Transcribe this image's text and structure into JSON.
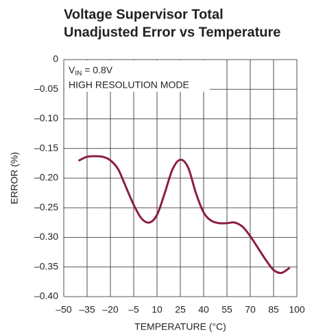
{
  "chart_data": {
    "type": "line",
    "title": [
      "Voltage Supervisor Total",
      "Unadjusted Error vs Temperature"
    ],
    "xlabel": "TEMPERATURE (°C)",
    "ylabel": "ERROR (%)",
    "annotation": {
      "main": "V",
      "subscript": "IN",
      "suffix": " = 0.8V"
    },
    "annotation2": "HIGH RESOLUTION MODE",
    "x": [
      -40,
      -35,
      -30,
      -25,
      -20,
      -15,
      -10,
      -5,
      0,
      5,
      10,
      15,
      20,
      25,
      30,
      35,
      40,
      45,
      50,
      55,
      60,
      65,
      70,
      75,
      80,
      85,
      90,
      95
    ],
    "series": [
      {
        "name": "ERROR",
        "color": "#8c1d40",
        "values": [
          -0.17,
          -0.164,
          -0.163,
          -0.164,
          -0.17,
          -0.185,
          -0.215,
          -0.245,
          -0.268,
          -0.275,
          -0.262,
          -0.225,
          -0.185,
          -0.169,
          -0.182,
          -0.225,
          -0.258,
          -0.272,
          -0.276,
          -0.276,
          -0.275,
          -0.282,
          -0.298,
          -0.318,
          -0.338,
          -0.355,
          -0.36,
          -0.352
        ]
      }
    ],
    "xlim": [
      -50,
      100
    ],
    "xticks": [
      {
        "value": -50,
        "label": "–50"
      },
      {
        "value": -35,
        "label": "–35"
      },
      {
        "value": -20,
        "label": "–20"
      },
      {
        "value": -5,
        "label": "–5"
      },
      10,
      25,
      40,
      55,
      70,
      85,
      100
    ],
    "ylim": [
      -0.4,
      0
    ],
    "yticks": [
      {
        "value": -0.4,
        "label": "–0.40"
      },
      {
        "value": -0.35,
        "label": "–0.35"
      },
      {
        "value": -0.3,
        "label": "–0.30"
      },
      {
        "value": -0.25,
        "label": "–0.25"
      },
      {
        "value": -0.2,
        "label": "–0.20"
      },
      {
        "value": -0.15,
        "label": "–0.15"
      },
      {
        "value": -0.1,
        "label": "–0.10"
      },
      {
        "value": -0.05,
        "label": "–0.05"
      },
      0
    ],
    "grid": true
  }
}
